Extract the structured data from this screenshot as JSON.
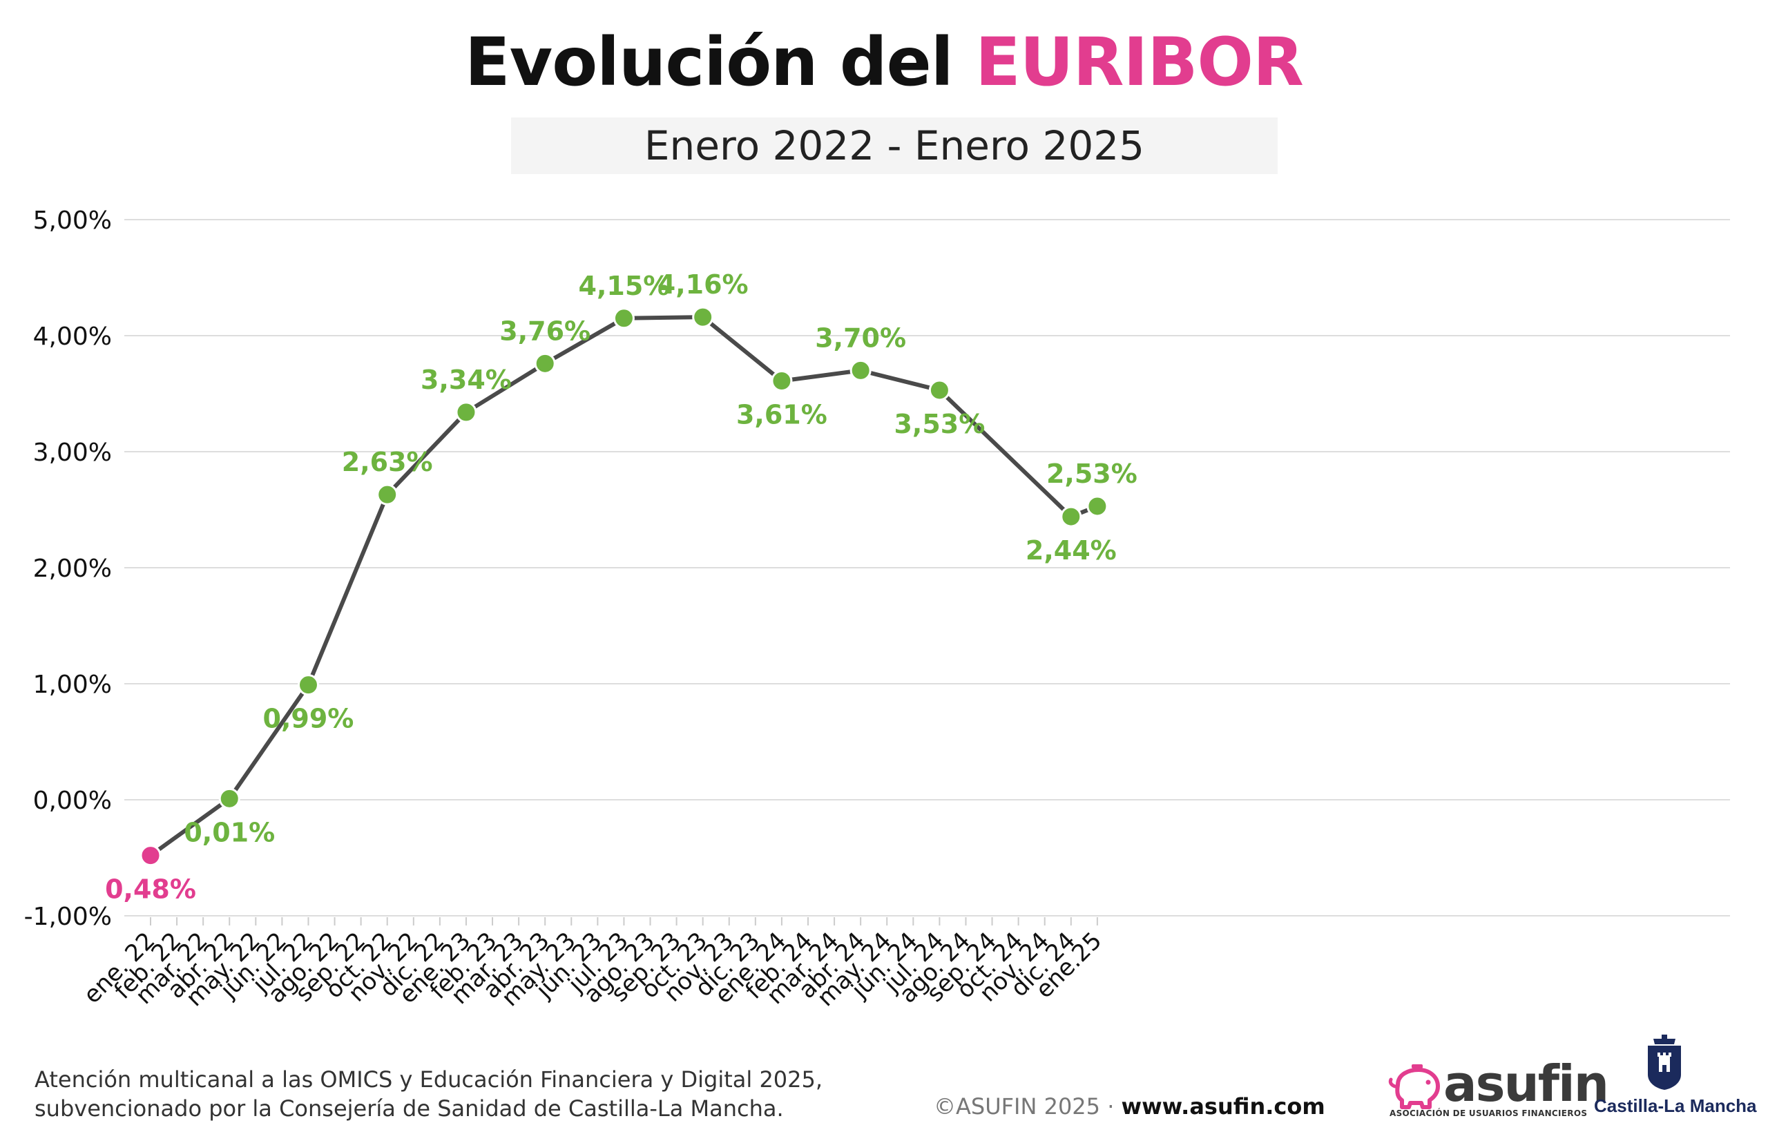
{
  "header": {
    "title_main": "Evolución del",
    "title_accent": "EURIBOR",
    "subtitle": "Enero 2022 - Enero 2025"
  },
  "colors": {
    "accent": "#e23d8f",
    "positive": "#6db33f",
    "negative": "#e23d8f",
    "line": "#4a4a4a",
    "grid": "#dddddd"
  },
  "chart_data": {
    "type": "line",
    "title": "Evolución del EURIBOR",
    "subtitle": "Enero 2022 - Enero 2025",
    "xlabel": "",
    "ylabel": "",
    "ylim": [
      -1,
      5
    ],
    "yticks": [
      -1,
      0,
      1,
      2,
      3,
      4,
      5
    ],
    "ytick_labels": [
      "-1,00%",
      "0,00%",
      "1,00%",
      "2,00%",
      "3,00%",
      "4,00%",
      "5,00%"
    ],
    "grid": true,
    "categories": [
      "ene. 22",
      "feb. 22",
      "mar. 22",
      "abr. 22",
      "may. 22",
      "jun. 22",
      "jul. 22",
      "ago. 22",
      "sep. 22",
      "oct. 22",
      "nov. 22",
      "dic. 22",
      "ene. 23",
      "feb. 23",
      "mar. 23",
      "abr. 23",
      "may. 23",
      "jun. 23",
      "jul. 23",
      "ago. 23",
      "sep. 23",
      "oct. 23",
      "nov. 23",
      "dic. 23",
      "ene. 24",
      "feb. 24",
      "mar. 24",
      "abr. 24",
      "may. 24",
      "jun. 24",
      "jul. 24",
      "ago. 24",
      "sep. 24",
      "oct. 24",
      "nov. 24",
      "dic. 24",
      "ene.25"
    ],
    "series": [
      {
        "points": [
          {
            "category": "ene. 22",
            "value": -0.48,
            "label": "0,48%",
            "label_pos": "below",
            "negative": true
          },
          {
            "category": "abr. 22",
            "value": 0.01,
            "label": "0,01%",
            "label_pos": "below"
          },
          {
            "category": "jul. 22",
            "value": 0.99,
            "label": "0,99%",
            "label_pos": "below"
          },
          {
            "category": "oct. 22",
            "value": 2.63,
            "label": "2,63%",
            "label_pos": "above"
          },
          {
            "category": "ene. 23",
            "value": 3.34,
            "label": "3,34%",
            "label_pos": "above"
          },
          {
            "category": "abr. 23",
            "value": 3.76,
            "label": "3,76%",
            "label_pos": "above"
          },
          {
            "category": "jul. 23",
            "value": 4.15,
            "label": "4,15%",
            "label_pos": "above"
          },
          {
            "category": "oct. 23",
            "value": 4.16,
            "label": "4,16%",
            "label_pos": "above"
          },
          {
            "category": "ene. 24",
            "value": 3.61,
            "label": "3,61%",
            "label_pos": "below"
          },
          {
            "category": "abr. 24",
            "value": 3.7,
            "label": "3,70%",
            "label_pos": "above"
          },
          {
            "category": "jul. 24",
            "value": 3.53,
            "label": "3,53%",
            "label_pos": "below"
          },
          {
            "category": "dic. 24",
            "value": 2.44,
            "label": "2,44%",
            "label_pos": "below"
          },
          {
            "category": "ene.25",
            "value": 2.53,
            "label": "2,53%",
            "label_pos": "above"
          }
        ]
      }
    ]
  },
  "footer": {
    "line1": "Atención multicanal a las OMICS y Educación Financiera y Digital 2025,",
    "line2": "subvencionado por la Consejería de Sanidad de Castilla-La Mancha.",
    "copyright": "©ASUFIN 2025 · ",
    "url": "www.asufin.com"
  },
  "logos": {
    "asufin_word": "asufin",
    "asufin_tagline": "ASOCIACIÓN DE USUARIOS FINANCIEROS",
    "asufin_icon": "piggy-bank-icon",
    "clm_word": "Castilla-La Mancha",
    "clm_icon": "castle-crest-icon"
  }
}
